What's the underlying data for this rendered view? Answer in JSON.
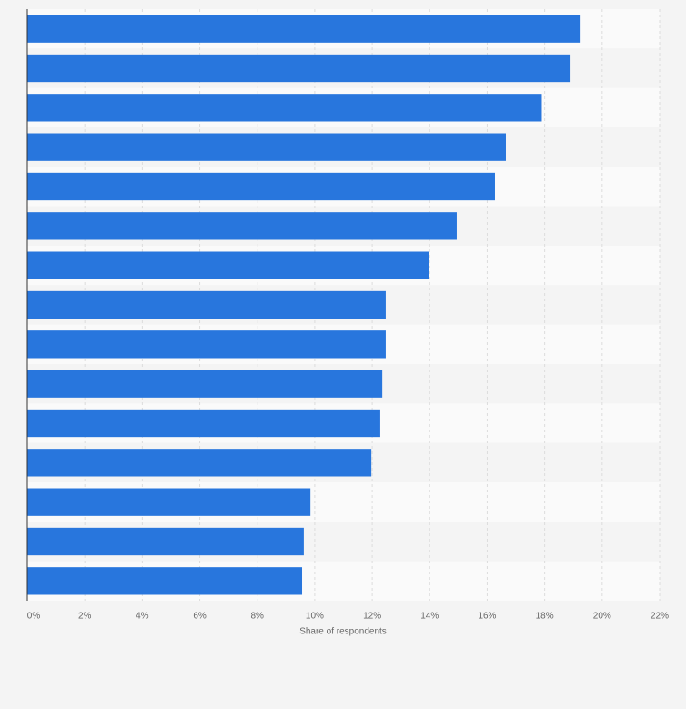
{
  "chart_data": {
    "type": "hbar",
    "x_label": "Share of respondents",
    "categories": [
      null,
      null,
      null,
      null,
      null,
      null,
      null,
      null,
      null,
      null,
      null,
      null,
      null,
      null,
      null
    ],
    "values": [
      19.25,
      18.9,
      17.9,
      16.65,
      16.27,
      14.94,
      13.99,
      12.47,
      12.47,
      12.35,
      12.28,
      11.97,
      9.85,
      9.62,
      9.56
    ],
    "color": "#2876dd",
    "xlim": [
      0,
      22
    ],
    "xticks": [
      {
        "value": 0,
        "label": "0%"
      },
      {
        "value": 2,
        "label": "2%"
      },
      {
        "value": 4,
        "label": "4%"
      },
      {
        "value": 6,
        "label": "6%"
      },
      {
        "value": 8,
        "label": "8%"
      },
      {
        "value": 10,
        "label": "10%"
      },
      {
        "value": 12,
        "label": "12%"
      },
      {
        "value": 14,
        "label": "14%"
      },
      {
        "value": 16,
        "label": "16%"
      },
      {
        "value": 18,
        "label": "18%"
      },
      {
        "value": 20,
        "label": "20%"
      },
      {
        "value": 22,
        "label": "22%"
      }
    ],
    "grid": true
  }
}
